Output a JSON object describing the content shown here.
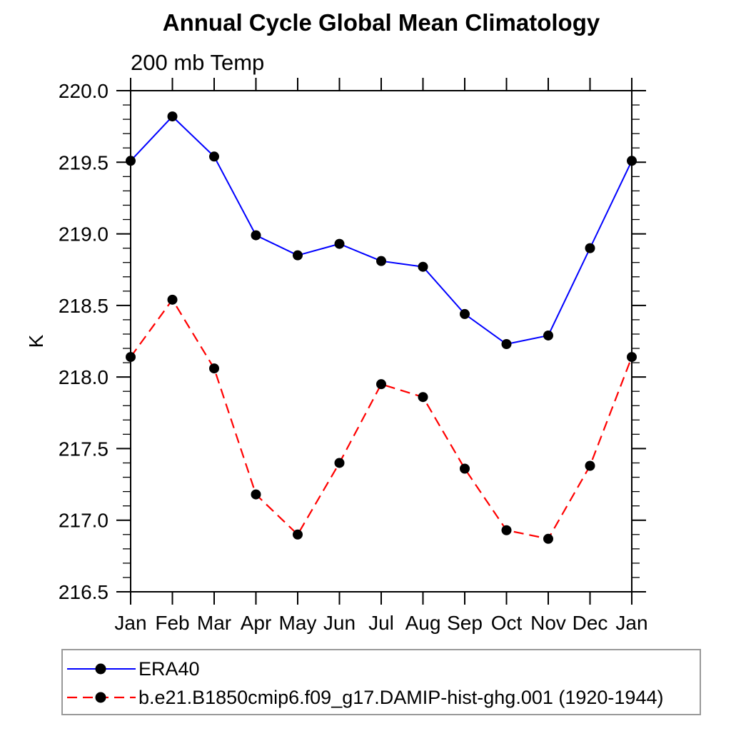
{
  "chart_data": {
    "type": "line",
    "title": "Annual Cycle Global Mean Climatology",
    "subtitle": "200 mb Temp",
    "xlabel": "",
    "ylabel": "K",
    "categories": [
      "Jan",
      "Feb",
      "Mar",
      "Apr",
      "May",
      "Jun",
      "Jul",
      "Aug",
      "Sep",
      "Oct",
      "Nov",
      "Dec",
      "Jan"
    ],
    "ylim": [
      216.5,
      220.0
    ],
    "ytick_major_step": 0.5,
    "ytick_minor_step": 0.1,
    "ytick_labels": [
      "216.5",
      "217.0",
      "217.5",
      "218.0",
      "218.5",
      "219.0",
      "219.5",
      "220.0"
    ],
    "grid": false,
    "legend_position": "bottom-left-box",
    "series": [
      {
        "name": "ERA40",
        "color": "#0000ff",
        "line_style": "solid",
        "marker": "filled-circle",
        "marker_color": "#000000",
        "values": [
          219.51,
          219.82,
          219.54,
          218.99,
          218.85,
          218.93,
          218.81,
          218.77,
          218.44,
          218.23,
          218.29,
          218.9,
          219.51
        ]
      },
      {
        "name": "b.e21.B1850cmip6.f09_g17.DAMIP-hist-ghg.001 (1920-1944)",
        "color": "#ff0000",
        "line_style": "dashed",
        "marker": "filled-circle",
        "marker_color": "#000000",
        "values": [
          218.14,
          218.54,
          218.06,
          217.18,
          216.9,
          217.4,
          217.95,
          217.86,
          217.36,
          216.93,
          216.87,
          217.38,
          218.14
        ]
      }
    ],
    "colors": {
      "axis": "#000000",
      "text": "#000000",
      "legend_border": "#999999"
    }
  }
}
